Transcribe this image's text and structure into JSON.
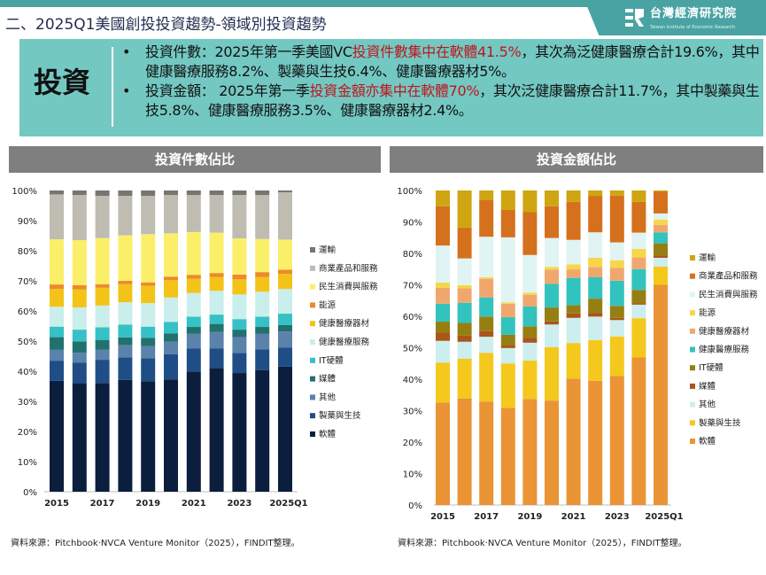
{
  "header": {
    "title": "二、2025Q1美國創投投資趨勢-領域別投資趨勢",
    "logo_cn": "台灣經濟研究院",
    "logo_en": "Taiwan Institute of Economic Research",
    "accent_color": "#4aa3a3"
  },
  "info": {
    "heading": "投資",
    "bullets": [
      {
        "pre": "投資件數：2025年第一季美國VC",
        "highlight": "投資件數集中在軟體41.5%",
        "post": "，其次為泛健康醫療合計19.6%，其中健康醫療服務8.2%、製藥與生技6.4%、健康醫療器材5%。"
      },
      {
        "pre": "投資金額： 2025年第一季",
        "highlight": "投資金額亦集中在軟體70%",
        "post": "，其次泛健康醫療合計11.7%，其中製藥與生技5.8%、健康醫療服務3.5%、健康醫療器材2.4%。"
      }
    ]
  },
  "chart_data": [
    {
      "type": "bar",
      "stacked": true,
      "title": "投資件數佔比",
      "categories": [
        "2015",
        "2016",
        "2017",
        "2018",
        "2019",
        "2020",
        "2021",
        "2022",
        "2023",
        "2024",
        "2025Q1"
      ],
      "tick_labels": [
        "2015",
        "",
        "2017",
        "",
        "2019",
        "",
        "2021",
        "",
        "2023",
        "",
        "2025Q1"
      ],
      "y_ticks": [
        "0%",
        "10%",
        "20%",
        "30%",
        "40%",
        "50%",
        "60%",
        "70%",
        "80%",
        "90%",
        "100%"
      ],
      "ylim": [
        0,
        100
      ],
      "legend_position": "right",
      "series": [
        {
          "name": "軟體",
          "color": "#0b1e3d",
          "values": [
            36.8,
            36.1,
            36.1,
            37.1,
            36.6,
            37.3,
            39.9,
            41.1,
            39.4,
            40.4,
            41.5
          ]
        },
        {
          "name": "製藥與生技",
          "color": "#1f4e87",
          "values": [
            6.7,
            6.8,
            7.7,
            7.5,
            7.7,
            8.3,
            7.6,
            6.4,
            6.7,
            6.8,
            6.4
          ]
        },
        {
          "name": "其他",
          "color": "#5b82ab",
          "values": [
            3.7,
            3.2,
            3.4,
            4.1,
            4.0,
            4.2,
            4.9,
            5.5,
            5.2,
            5.3,
            5.3
          ]
        },
        {
          "name": "媒體",
          "color": "#22716f",
          "values": [
            4.1,
            3.8,
            3.2,
            2.5,
            2.8,
            2.7,
            2.3,
            2.7,
            2.5,
            2.2,
            2.1
          ]
        },
        {
          "name": "IT硬體",
          "color": "#35c1c6",
          "values": [
            3.5,
            3.9,
            4.2,
            4.3,
            3.7,
            3.9,
            3.4,
            3.1,
            3.5,
            3.4,
            3.8
          ]
        },
        {
          "name": "健康醫療服務",
          "color": "#c9eeec",
          "values": [
            6.6,
            7.4,
            7.2,
            7.4,
            7.8,
            8.1,
            7.9,
            7.9,
            8.2,
            8.3,
            8.2
          ]
        },
        {
          "name": "健康醫療器材",
          "color": "#f3c318",
          "values": [
            5.9,
            6.0,
            5.9,
            6.0,
            5.8,
            5.7,
            4.7,
            4.6,
            5.0,
            4.9,
            5.0
          ]
        },
        {
          "name": "能源",
          "color": "#ec8a2c",
          "values": [
            1.5,
            1.4,
            1.2,
            1.1,
            1.1,
            1.2,
            1.3,
            1.3,
            1.6,
            1.6,
            1.4
          ]
        },
        {
          "name": "民生消費與服務",
          "color": "#fbef6a",
          "values": [
            15.0,
            14.9,
            15.3,
            15.1,
            16.0,
            14.4,
            14.2,
            13.4,
            12.0,
            11.0,
            10.0
          ]
        },
        {
          "name": "商業產品和服務",
          "color": "#bfbcb2",
          "values": [
            14.9,
            15.0,
            14.0,
            13.1,
            12.7,
            12.7,
            12.3,
            12.5,
            14.4,
            14.6,
            15.7
          ]
        },
        {
          "name": "運輸",
          "color": "#767670",
          "values": [
            1.3,
            1.5,
            1.8,
            1.8,
            1.8,
            1.5,
            1.5,
            1.5,
            1.5,
            1.5,
            0.6
          ]
        }
      ]
    },
    {
      "type": "bar",
      "stacked": true,
      "title": "投資金額佔比",
      "categories": [
        "2015",
        "2016",
        "2017",
        "2018",
        "2019",
        "2020",
        "2021",
        "2022",
        "2023",
        "2024",
        "2025Q1"
      ],
      "tick_labels": [
        "2015",
        "",
        "2017",
        "",
        "2019",
        "",
        "2021",
        "",
        "2023",
        "",
        "2025Q1"
      ],
      "y_ticks": [
        "0%",
        "10%",
        "20%",
        "30%",
        "40%",
        "50%",
        "60%",
        "70%",
        "80%",
        "90%",
        "100%"
      ],
      "ylim": [
        0,
        100
      ],
      "legend_position": "right",
      "series": [
        {
          "name": "軟體",
          "color": "#ea9436",
          "values": [
            32.6,
            33.9,
            32.9,
            30.9,
            33.7,
            33.2,
            40.2,
            39.5,
            41.0,
            46.9,
            70.0
          ]
        },
        {
          "name": "製藥與生技",
          "color": "#f4c81c",
          "values": [
            12.7,
            12.6,
            15.5,
            14.1,
            12.2,
            17.0,
            11.3,
            12.9,
            12.6,
            12.5,
            5.8
          ]
        },
        {
          "name": "其他",
          "color": "#cdeeee",
          "values": [
            6.9,
            5.4,
            5.1,
            4.9,
            5.7,
            7.2,
            8.0,
            7.5,
            5.2,
            4.3,
            2.8
          ]
        },
        {
          "name": "媒體",
          "color": "#a9561b",
          "values": [
            2.6,
            2.0,
            1.8,
            0.8,
            1.6,
            1.0,
            1.4,
            1.2,
            0.7,
            0.5,
            0.8
          ]
        },
        {
          "name": "IT硬體",
          "color": "#967f12",
          "values": [
            3.5,
            4.0,
            4.6,
            3.4,
            3.6,
            4.4,
            2.6,
            4.5,
            3.8,
            4.2,
            3.8
          ]
        },
        {
          "name": "健康醫療服務",
          "color": "#33c3be",
          "values": [
            5.7,
            6.4,
            6.1,
            5.6,
            6.3,
            7.5,
            8.7,
            6.8,
            8.0,
            6.6,
            3.5
          ]
        },
        {
          "name": "健康醫療器材",
          "color": "#f0a76e",
          "values": [
            5.1,
            4.6,
            5.9,
            4.3,
            3.7,
            4.5,
            2.7,
            3.3,
            4.1,
            3.7,
            2.4
          ]
        },
        {
          "name": "能源",
          "color": "#f7d648",
          "values": [
            1.6,
            1.0,
            0.5,
            0.4,
            0.7,
            0.9,
            1.6,
            2.9,
            2.4,
            2.7,
            1.6
          ]
        },
        {
          "name": "民生消費與服務",
          "color": "#dff4f3",
          "values": [
            11.8,
            8.5,
            12.9,
            20.7,
            12.0,
            9.2,
            7.8,
            8.1,
            5.7,
            5.2,
            2.0
          ]
        },
        {
          "name": "商業產品和服務",
          "color": "#d5711d",
          "values": [
            12.5,
            9.8,
            11.6,
            8.7,
            13.6,
            10.1,
            12.1,
            11.6,
            14.9,
            9.8,
            7.0
          ]
        },
        {
          "name": "運輸",
          "color": "#cfa511",
          "values": [
            5.0,
            11.8,
            3.1,
            6.2,
            6.9,
            5.0,
            3.6,
            1.7,
            1.6,
            3.6,
            0.3
          ]
        }
      ]
    }
  ],
  "sources": [
    "資料來源：Pitchbook·NVCA Venture Monitor（2025），FINDIT整理。",
    "資料來源：Pitchbook·NVCA Venture Monitor（2025），FINDIT整理。"
  ]
}
